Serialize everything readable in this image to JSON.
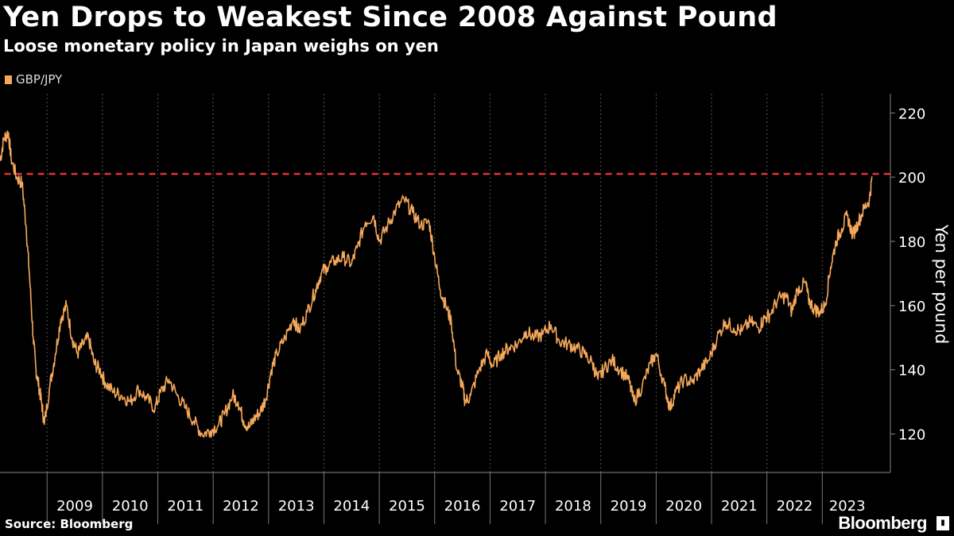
{
  "title": "Yen Drops to Weakest Since 2008 Against Pound",
  "subtitle": "Loose monetary policy in Japan weighs on yen",
  "source": "Source: Bloomberg",
  "brand": "Bloomberg",
  "colors": {
    "background": "#000000",
    "series": "#f5a85a",
    "reference_line": "#e8323c",
    "grid": "#555555"
  },
  "chart_data": {
    "type": "line",
    "title": "Yen Drops to Weakest Since 2008 Against Pound",
    "subtitle": "Loose monetary policy in Japan weighs on yen",
    "xlabel": "",
    "ylabel": "Yen per pound",
    "ylim": [
      108,
      226
    ],
    "yticks": [
      120,
      140,
      160,
      180,
      200,
      220
    ],
    "xlim": [
      2008.15,
      2023.9
    ],
    "xticks": [
      "2009",
      "2010",
      "2011",
      "2012",
      "2013",
      "2014",
      "2015",
      "2016",
      "2017",
      "2018",
      "2019",
      "2020",
      "2021",
      "2022",
      "2023"
    ],
    "grid": "vertical",
    "legend": "top-left",
    "reference_line": {
      "y": 201,
      "style": "dashed"
    },
    "series": [
      {
        "name": "GBP/JPY",
        "x": [
          2008.15,
          2008.22,
          2008.3,
          2008.35,
          2008.45,
          2008.55,
          2008.62,
          2008.68,
          2008.75,
          2008.8,
          2008.85,
          2008.9,
          2008.95,
          2009.05,
          2009.15,
          2009.25,
          2009.35,
          2009.45,
          2009.55,
          2009.65,
          2009.75,
          2009.85,
          2009.95,
          2010.05,
          2010.2,
          2010.35,
          2010.5,
          2010.65,
          2010.8,
          2010.95,
          2011.05,
          2011.2,
          2011.35,
          2011.5,
          2011.65,
          2011.8,
          2011.95,
          2012.1,
          2012.2,
          2012.35,
          2012.45,
          2012.55,
          2012.65,
          2012.75,
          2012.85,
          2012.95,
          2013.05,
          2013.15,
          2013.3,
          2013.45,
          2013.55,
          2013.7,
          2013.85,
          2013.95,
          2014.05,
          2014.2,
          2014.35,
          2014.5,
          2014.6,
          2014.75,
          2014.9,
          2015.0,
          2015.15,
          2015.3,
          2015.45,
          2015.6,
          2015.75,
          2015.9,
          2016.0,
          2016.1,
          2016.2,
          2016.3,
          2016.4,
          2016.5,
          2016.55,
          2016.65,
          2016.8,
          2016.95,
          2017.05,
          2017.2,
          2017.35,
          2017.5,
          2017.65,
          2017.8,
          2017.95,
          2018.1,
          2018.25,
          2018.4,
          2018.55,
          2018.7,
          2018.85,
          2018.95,
          2019.05,
          2019.2,
          2019.35,
          2019.5,
          2019.6,
          2019.75,
          2019.9,
          2020.0,
          2020.15,
          2020.25,
          2020.35,
          2020.5,
          2020.65,
          2020.8,
          2020.95,
          2021.1,
          2021.25,
          2021.4,
          2021.55,
          2021.7,
          2021.85,
          2021.95,
          2022.05,
          2022.2,
          2022.35,
          2022.45,
          2022.55,
          2022.7,
          2022.75,
          2022.85,
          2022.95,
          2023.05,
          2023.15,
          2023.25,
          2023.35,
          2023.45,
          2023.55,
          2023.65,
          2023.75,
          2023.85,
          2023.9
        ],
        "values": [
          205,
          212,
          214,
          206,
          200,
          198,
          185,
          170,
          150,
          140,
          135,
          130,
          123,
          135,
          145,
          156,
          160,
          150,
          145,
          148,
          150,
          142,
          140,
          136,
          133,
          132,
          130,
          134,
          131,
          128,
          133,
          137,
          132,
          128,
          124,
          120,
          121,
          123,
          126,
          132,
          130,
          124,
          122,
          125,
          127,
          131,
          140,
          145,
          150,
          156,
          152,
          158,
          165,
          170,
          172,
          174,
          175,
          173,
          178,
          186,
          188,
          180,
          185,
          190,
          193,
          189,
          185,
          186,
          175,
          165,
          160,
          155,
          140,
          135,
          130,
          132,
          140,
          145,
          141,
          145,
          147,
          148,
          152,
          150,
          151,
          154,
          149,
          148,
          147,
          145,
          142,
          137,
          140,
          143,
          140,
          137,
          130,
          135,
          142,
          145,
          135,
          128,
          133,
          137,
          136,
          140,
          143,
          150,
          155,
          153,
          152,
          155,
          153,
          156,
          157,
          162,
          163,
          158,
          165,
          167,
          162,
          159,
          158,
          160,
          172,
          180,
          184,
          188,
          182,
          186,
          190,
          193,
          200
        ]
      }
    ]
  }
}
